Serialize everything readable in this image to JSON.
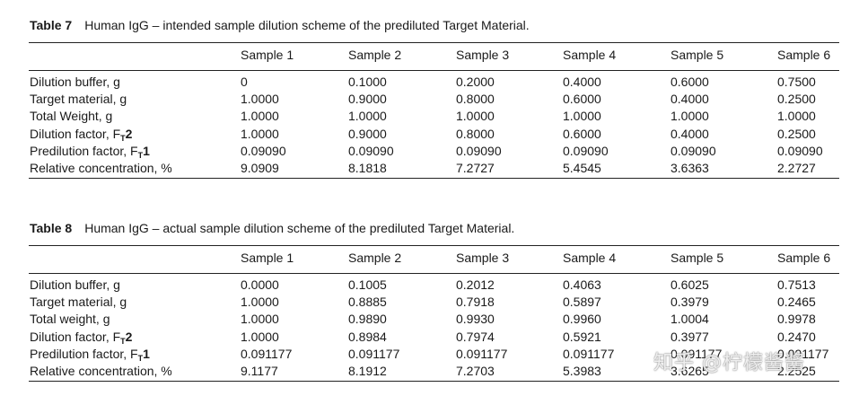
{
  "table7": {
    "number": "Table 7",
    "title": "Human IgG – intended sample dilution scheme of the prediluted Target Material.",
    "headers": [
      "Sample 1",
      "Sample 2",
      "Sample 3",
      "Sample 4",
      "Sample 5",
      "Sample 6"
    ],
    "rows": [
      {
        "label": "Dilution buffer, g",
        "values": [
          "0",
          "0.1000",
          "0.2000",
          "0.4000",
          "0.6000",
          "0.7500"
        ]
      },
      {
        "label": "Target material, g",
        "values": [
          "1.0000",
          "0.9000",
          "0.8000",
          "0.6000",
          "0.4000",
          "0.2500"
        ]
      },
      {
        "label": "Total Weight, g",
        "values": [
          "1.0000",
          "1.0000",
          "1.0000",
          "1.0000",
          "1.0000",
          "1.0000"
        ]
      },
      {
        "label_prefix": "Dilution factor, F",
        "label_sub": "T",
        "label_suffix": "2",
        "values": [
          "1.0000",
          "0.9000",
          "0.8000",
          "0.6000",
          "0.4000",
          "0.2500"
        ]
      },
      {
        "label_prefix": "Predilution factor, F",
        "label_sub": "T",
        "label_suffix": "1",
        "values": [
          "0.09090",
          "0.09090",
          "0.09090",
          "0.09090",
          "0.09090",
          "0.09090"
        ]
      },
      {
        "label": "Relative concentration, %",
        "values": [
          "9.0909",
          "8.1818",
          "7.2727",
          "5.4545",
          "3.6363",
          "2.2727"
        ]
      }
    ]
  },
  "table8": {
    "number": "Table 8",
    "title": "Human IgG – actual sample dilution scheme of the prediluted Target Material.",
    "headers": [
      "Sample 1",
      "Sample 2",
      "Sample 3",
      "Sample 4",
      "Sample 5",
      "Sample 6"
    ],
    "rows": [
      {
        "label": "Dilution buffer, g",
        "values": [
          "0.0000",
          "0.1005",
          "0.2012",
          "0.4063",
          "0.6025",
          "0.7513"
        ]
      },
      {
        "label": "Target material, g",
        "values": [
          "1.0000",
          "0.8885",
          "0.7918",
          "0.5897",
          "0.3979",
          "0.2465"
        ]
      },
      {
        "label": "Total weight, g",
        "values": [
          "1.0000",
          "0.9890",
          "0.9930",
          "0.9960",
          "1.0004",
          "0.9978"
        ]
      },
      {
        "label_prefix": "Dilution factor, F",
        "label_sub": "T",
        "label_suffix": "2",
        "values": [
          "1.0000",
          "0.8984",
          "0.7974",
          "0.5921",
          "0.3977",
          "0.2470"
        ]
      },
      {
        "label_prefix": "Predilution factor, F",
        "label_sub": "T",
        "label_suffix": "1",
        "values": [
          "0.091177",
          "0.091177",
          "0.091177",
          "0.091177",
          "0.091177",
          "0.091177"
        ]
      },
      {
        "label": "Relative concentration, %",
        "values": [
          "9.1177",
          "8.1912",
          "7.2703",
          "5.3983",
          "3.6265",
          "2.2525"
        ]
      }
    ]
  },
  "watermark": "知乎 @柠檬酱酱"
}
